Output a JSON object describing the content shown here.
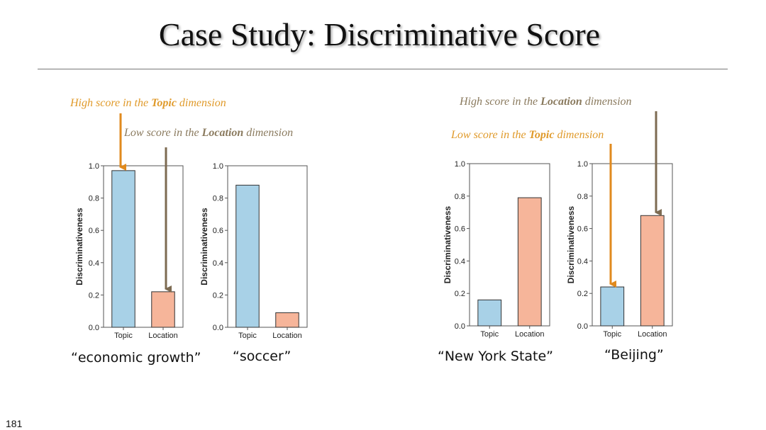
{
  "slide": {
    "title": "Case Study: Discriminative Score",
    "page_number": "181"
  },
  "annotations": {
    "high_topic": {
      "prefix": "High score in the ",
      "bold": "Topic",
      "suffix": " dimension"
    },
    "low_location": {
      "prefix": "Low score in the ",
      "bold": "Location",
      "suffix": " dimension"
    },
    "high_location": {
      "prefix": "High score in the ",
      "bold": "Location",
      "suffix": " dimension"
    },
    "low_topic": {
      "prefix": "Low score in the ",
      "bold": "Topic",
      "suffix": " dimension"
    }
  },
  "colors": {
    "topic_bar": "#a8d1e7",
    "location_bar": "#f6b59a",
    "orange_arrow": "#e08a1e",
    "brown_arrow": "#7d6b52"
  },
  "chart_data": [
    {
      "type": "bar",
      "caption": "“economic growth”",
      "categories": [
        "Topic",
        "Location"
      ],
      "values": [
        0.97,
        0.22
      ],
      "ylabel": "Discriminativeness",
      "ylim": [
        0,
        1.0
      ],
      "yticks": [
        "0.0",
        "0.2",
        "0.4",
        "0.6",
        "0.8",
        "1.0"
      ]
    },
    {
      "type": "bar",
      "caption": "“soccer”",
      "categories": [
        "Topic",
        "Location"
      ],
      "values": [
        0.88,
        0.09
      ],
      "ylabel": "Discriminativeness",
      "ylim": [
        0,
        1.0
      ],
      "yticks": [
        "0.0",
        "0.2",
        "0.4",
        "0.6",
        "0.8",
        "1.0"
      ]
    },
    {
      "type": "bar",
      "caption": "“New York State”",
      "categories": [
        "Topic",
        "Location"
      ],
      "values": [
        0.16,
        0.79
      ],
      "ylabel": "Discriminativeness",
      "ylim": [
        0,
        1.0
      ],
      "yticks": [
        "0.0",
        "0.2",
        "0.4",
        "0.6",
        "0.8",
        "1.0"
      ]
    },
    {
      "type": "bar",
      "caption": "“Beijing”",
      "categories": [
        "Topic",
        "Location"
      ],
      "values": [
        0.24,
        0.68
      ],
      "ylabel": "Discriminativeness",
      "ylim": [
        0,
        1.0
      ],
      "yticks": [
        "0.0",
        "0.2",
        "0.4",
        "0.6",
        "0.8",
        "1.0"
      ]
    }
  ]
}
